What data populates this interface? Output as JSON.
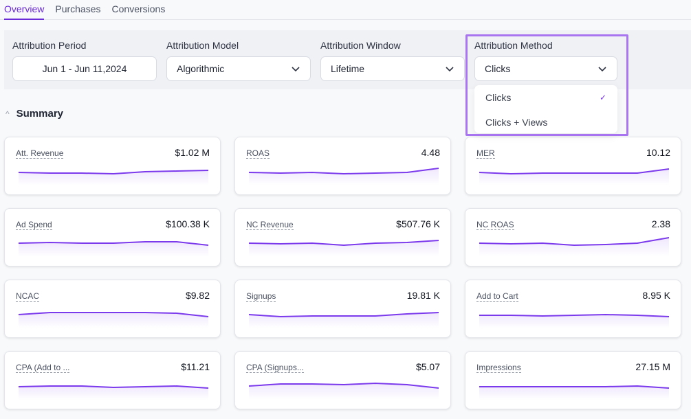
{
  "tabs": [
    "Overview",
    "Purchases",
    "Conversions"
  ],
  "filters": {
    "period": {
      "label": "Attribution Period",
      "value": "Jun 1 - Jun 11,2024"
    },
    "model": {
      "label": "Attribution Model",
      "value": "Algorithmic"
    },
    "window": {
      "label": "Attribution Window",
      "value": "Lifetime"
    },
    "method": {
      "label": "Attribution Method",
      "value": "Clicks",
      "options": [
        "Clicks",
        "Clicks + Views"
      ],
      "selected_check": "✓"
    }
  },
  "summary": {
    "title": "Summary",
    "caret": "^"
  },
  "accent": "#7c3aed",
  "cards": [
    {
      "label": "Att. Revenue",
      "value": "$1.02 M",
      "trend": [
        3,
        2,
        2,
        1,
        4,
        5,
        6
      ]
    },
    {
      "label": "ROAS",
      "value": "4.48",
      "trend": [
        3,
        2,
        3,
        1,
        2,
        3,
        9
      ]
    },
    {
      "label": "MER",
      "value": "10.12",
      "trend": [
        3,
        1,
        2,
        2,
        2,
        2,
        8
      ]
    },
    {
      "label": "Ad Spend",
      "value": "$100.38 K",
      "trend": [
        4,
        5,
        4,
        4,
        6,
        6,
        1
      ]
    },
    {
      "label": "NC Revenue",
      "value": "$507.76 K",
      "trend": [
        4,
        3,
        4,
        1,
        4,
        5,
        8
      ]
    },
    {
      "label": "NC ROAS",
      "value": "2.38",
      "trend": [
        4,
        3,
        4,
        1,
        2,
        4,
        12
      ]
    },
    {
      "label": "NCAC",
      "value": "$9.82",
      "trend": [
        4,
        7,
        7,
        7,
        7,
        6,
        1
      ]
    },
    {
      "label": "Signups",
      "value": "19.81 K",
      "trend": [
        4,
        1,
        2,
        2,
        2,
        5,
        7
      ]
    },
    {
      "label": "Add to Cart",
      "value": "8.95 K",
      "trend": [
        3,
        3,
        2,
        3,
        4,
        3,
        1
      ]
    },
    {
      "label": "CPA (Add to ...",
      "value": "$11.21",
      "trend": [
        3,
        4,
        4,
        2,
        3,
        4,
        1
      ]
    },
    {
      "label": "CPA (Signups...",
      "value": "$5.07",
      "trend": [
        4,
        7,
        7,
        6,
        8,
        6,
        1
      ]
    },
    {
      "label": "Impressions",
      "value": "27.15 M",
      "trend": [
        3,
        3,
        3,
        3,
        3,
        4,
        1
      ]
    }
  ]
}
